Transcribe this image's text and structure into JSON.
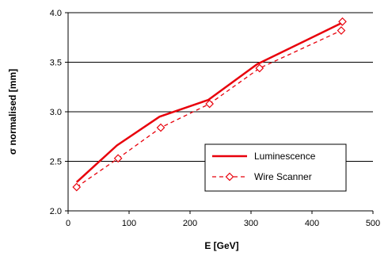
{
  "chart_data": {
    "type": "line",
    "xlabel": "E [GeV]",
    "ylabel": "σ normalised [mm]",
    "xlim": [
      0,
      500
    ],
    "ylim": [
      2.0,
      4.0
    ],
    "x_ticks": [
      0,
      100,
      200,
      300,
      400,
      500
    ],
    "y_ticks": [
      2.0,
      2.5,
      3.0,
      3.5,
      4.0
    ],
    "x_tick_labels": [
      "0",
      "100",
      "200",
      "300",
      "400",
      "500"
    ],
    "y_tick_labels": [
      "2.0",
      "2.5",
      "3.0",
      "3.5",
      "4.0"
    ],
    "grid": "horizontal",
    "legend_position": "lower-right",
    "colors": {
      "series": "#e8000b"
    },
    "series": [
      {
        "name": "Luminescence",
        "style": "solid",
        "marker": "none",
        "x": [
          14,
          80,
          150,
          230,
          310,
          450
        ],
        "y": [
          2.29,
          2.66,
          2.95,
          3.12,
          3.48,
          3.9
        ]
      },
      {
        "name": "Wire Scanner",
        "style": "dashed",
        "marker": "diamond-open",
        "x": [
          14,
          82,
          152,
          232,
          314,
          448,
          450
        ],
        "y": [
          2.24,
          2.53,
          2.84,
          3.08,
          3.44,
          3.82,
          3.91
        ]
      }
    ]
  }
}
